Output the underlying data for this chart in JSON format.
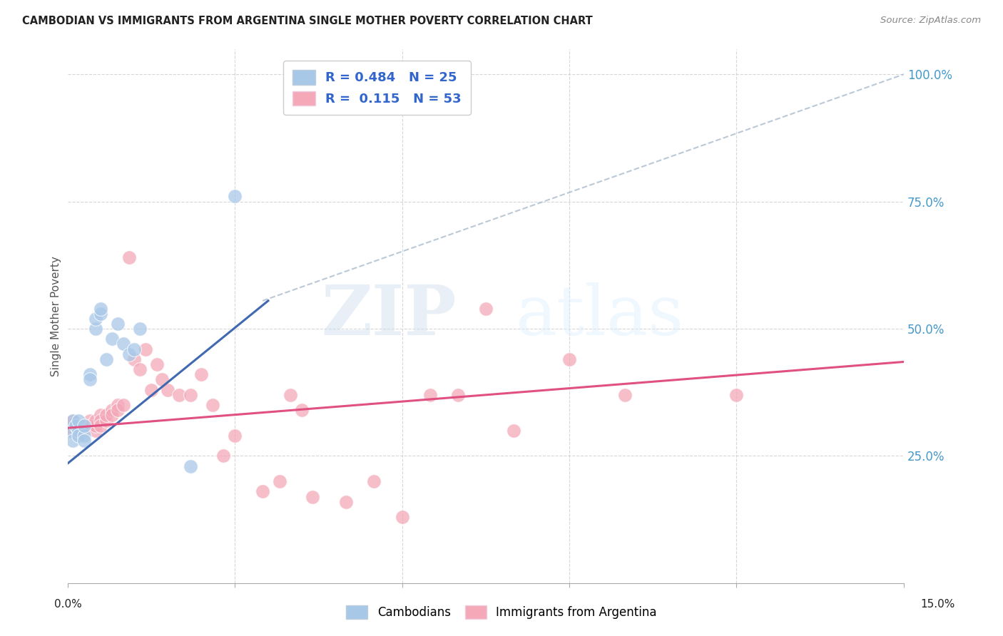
{
  "title": "CAMBODIAN VS IMMIGRANTS FROM ARGENTINA SINGLE MOTHER POVERTY CORRELATION CHART",
  "source": "Source: ZipAtlas.com",
  "ylabel": "Single Mother Poverty",
  "watermark_zip": "ZIP",
  "watermark_atlas": "atlas",
  "blue_color": "#a8c8e8",
  "pink_color": "#f4a8b8",
  "blue_line_color": "#4169b0",
  "pink_line_color": "#e05080",
  "legend_text_color": "#3366cc",
  "right_tick_color": "#4499cc",
  "background_color": "#ffffff",
  "grid_color": "#cccccc",
  "xlim": [
    0.0,
    0.15
  ],
  "ylim": [
    0.0,
    1.05
  ],
  "cambodian_x": [
    0.0005,
    0.001,
    0.001,
    0.0015,
    0.002,
    0.002,
    0.002,
    0.003,
    0.003,
    0.003,
    0.004,
    0.004,
    0.005,
    0.005,
    0.006,
    0.006,
    0.007,
    0.008,
    0.009,
    0.01,
    0.011,
    0.012,
    0.013,
    0.022,
    0.03
  ],
  "cambodian_y": [
    0.3,
    0.28,
    0.32,
    0.31,
    0.3,
    0.29,
    0.32,
    0.29,
    0.31,
    0.28,
    0.41,
    0.4,
    0.5,
    0.52,
    0.53,
    0.54,
    0.44,
    0.48,
    0.51,
    0.47,
    0.45,
    0.46,
    0.5,
    0.23,
    0.76
  ],
  "argentina_x": [
    0.0005,
    0.001,
    0.001,
    0.0015,
    0.002,
    0.002,
    0.003,
    0.003,
    0.003,
    0.004,
    0.004,
    0.005,
    0.005,
    0.005,
    0.006,
    0.006,
    0.006,
    0.007,
    0.007,
    0.008,
    0.008,
    0.009,
    0.009,
    0.01,
    0.011,
    0.012,
    0.013,
    0.014,
    0.015,
    0.016,
    0.017,
    0.018,
    0.02,
    0.022,
    0.024,
    0.026,
    0.028,
    0.03,
    0.035,
    0.038,
    0.04,
    0.042,
    0.044,
    0.05,
    0.055,
    0.06,
    0.065,
    0.07,
    0.075,
    0.08,
    0.09,
    0.1,
    0.12
  ],
  "argentina_y": [
    0.31,
    0.3,
    0.32,
    0.31,
    0.3,
    0.31,
    0.3,
    0.31,
    0.3,
    0.32,
    0.31,
    0.3,
    0.31,
    0.32,
    0.33,
    0.32,
    0.31,
    0.32,
    0.33,
    0.34,
    0.33,
    0.35,
    0.34,
    0.35,
    0.64,
    0.44,
    0.42,
    0.46,
    0.38,
    0.43,
    0.4,
    0.38,
    0.37,
    0.37,
    0.41,
    0.35,
    0.25,
    0.29,
    0.18,
    0.2,
    0.37,
    0.34,
    0.17,
    0.16,
    0.2,
    0.13,
    0.37,
    0.37,
    0.54,
    0.3,
    0.44,
    0.37,
    0.37
  ],
  "blue_line_x0": 0.0,
  "blue_line_y0": 0.235,
  "blue_line_x1": 0.036,
  "blue_line_y1": 0.555,
  "pink_line_x0": 0.0,
  "pink_line_y0": 0.305,
  "pink_line_x1": 0.15,
  "pink_line_y1": 0.435,
  "dash_line_x0": 0.035,
  "dash_line_y0": 0.555,
  "dash_line_x1": 0.15,
  "dash_line_y1": 1.0
}
